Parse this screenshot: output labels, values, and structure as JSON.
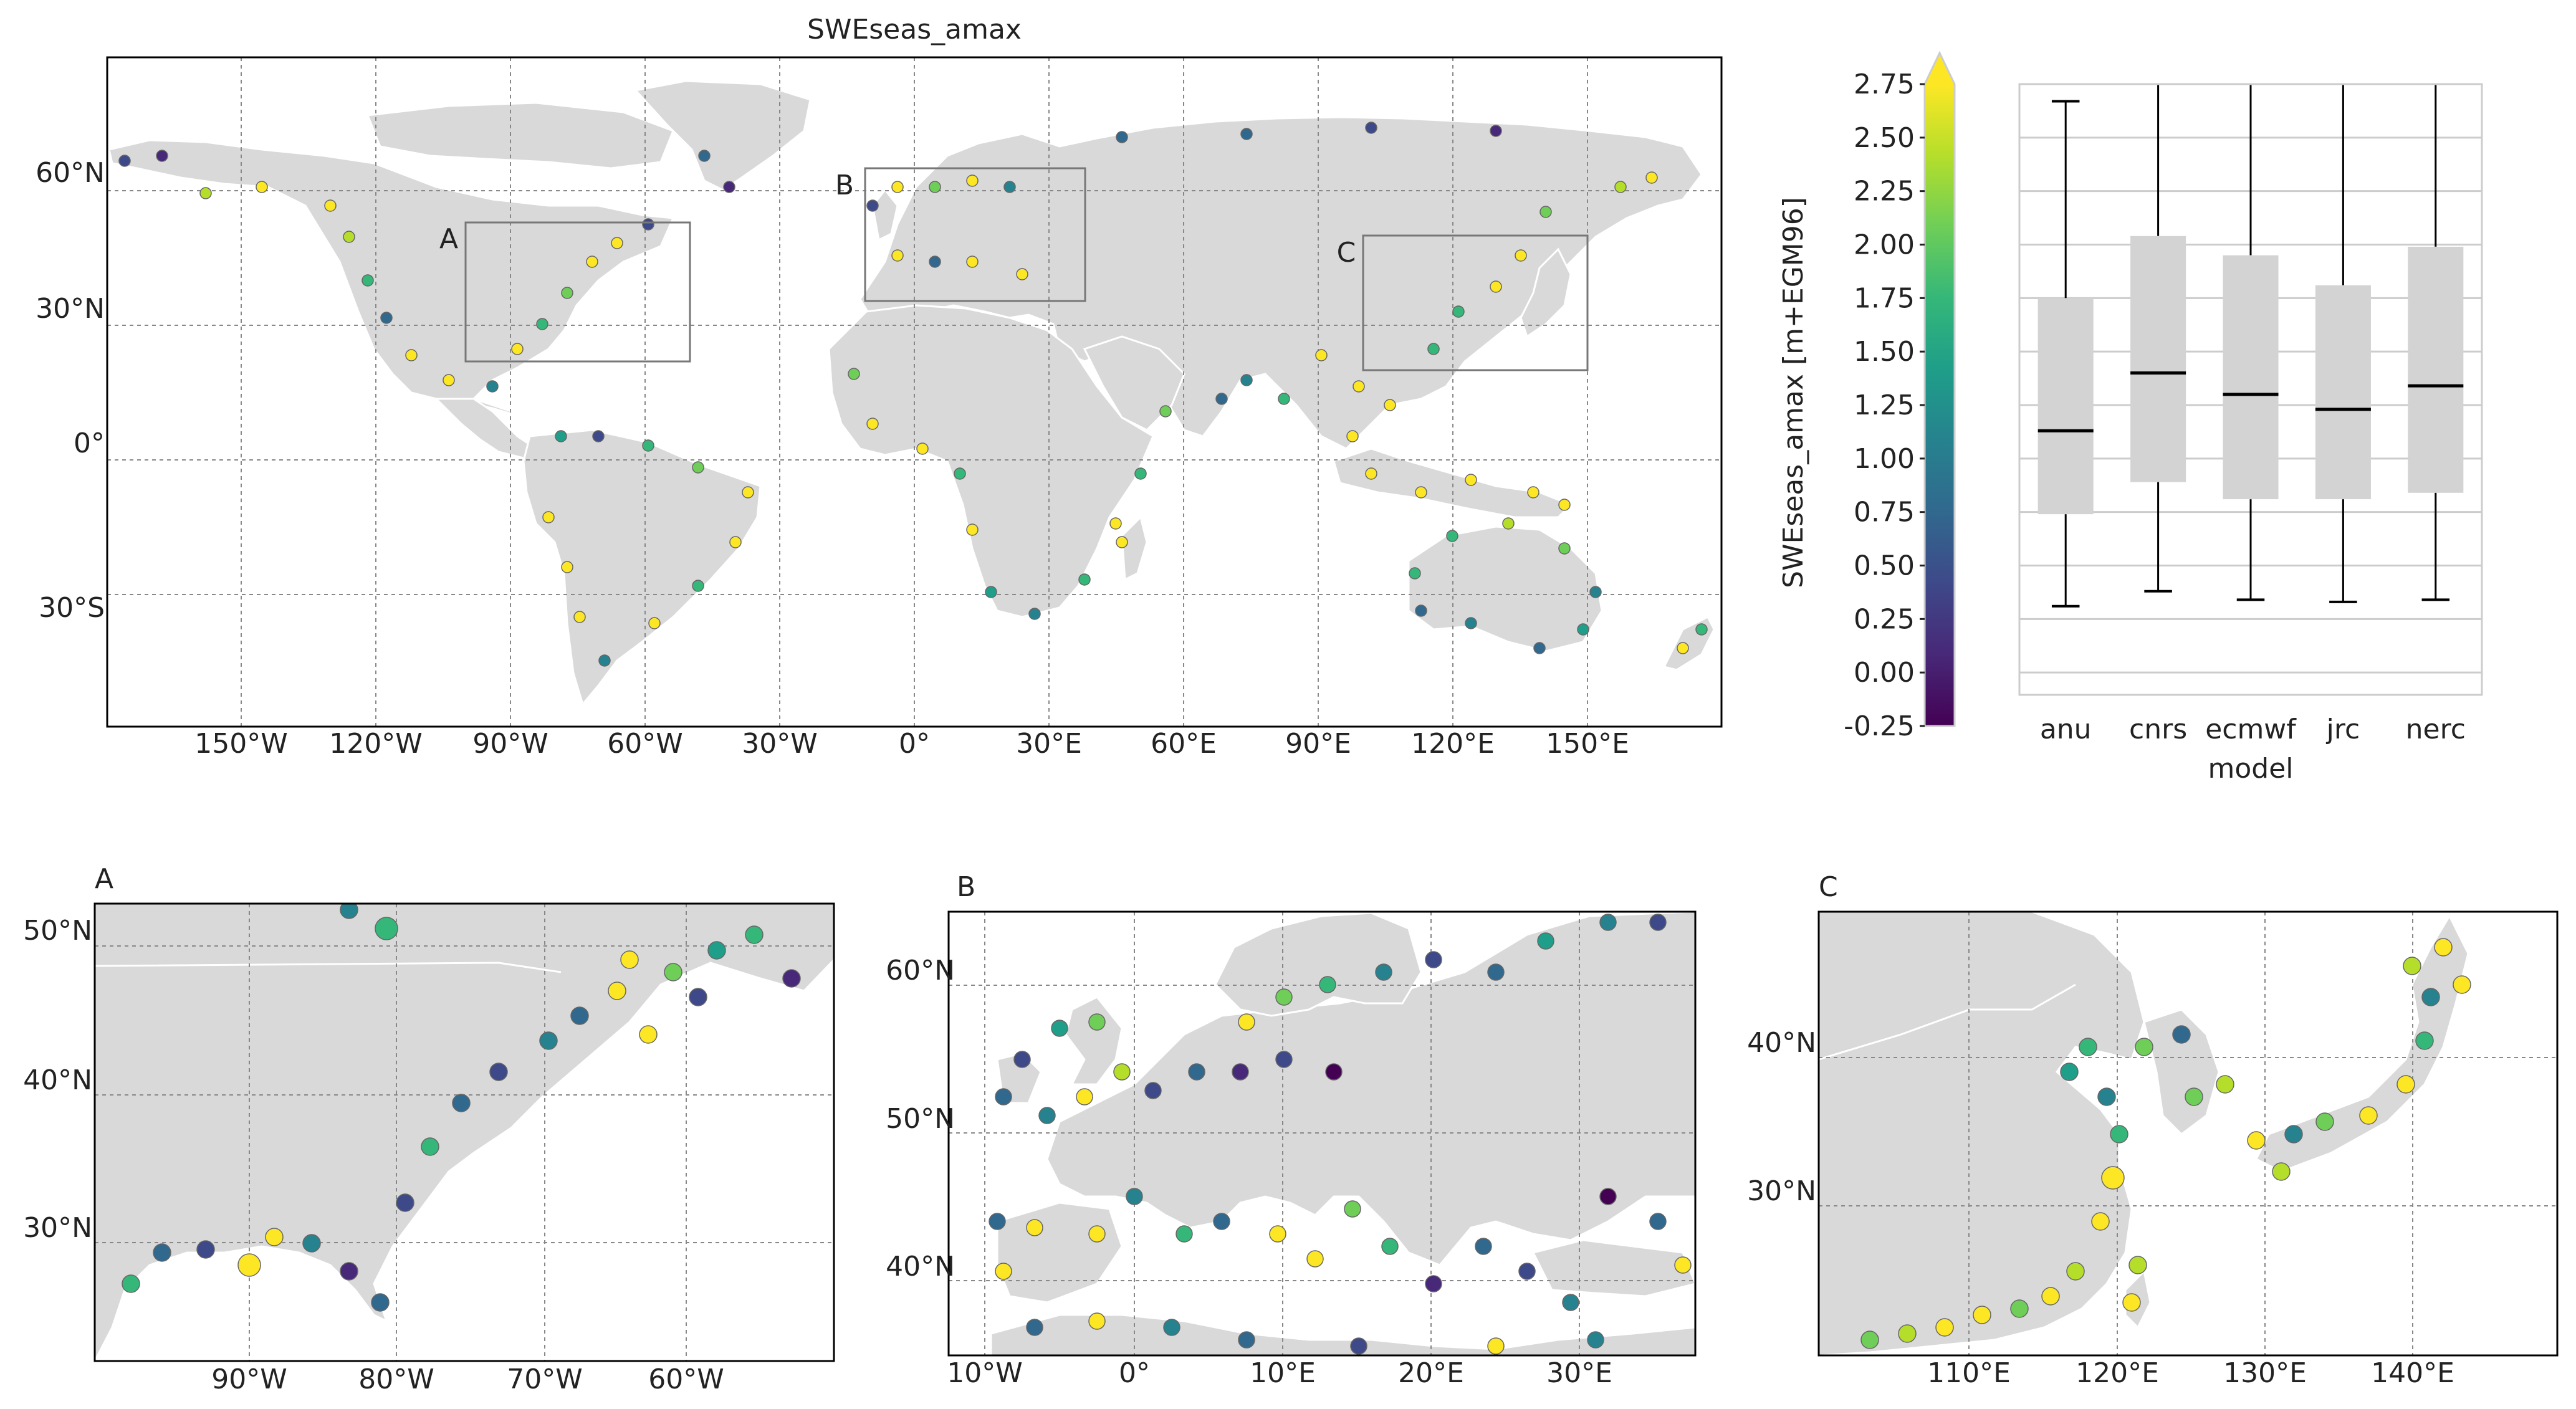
{
  "colors": {
    "land": "#d9d9d9",
    "ocean": "#ffffff",
    "border": "#ffffff",
    "grid": "#888888",
    "box_fill": "#d3d3d3",
    "median": "#000000",
    "colormap": [
      "#440154",
      "#482878",
      "#3e4989",
      "#31688e",
      "#26828e",
      "#1f9e89",
      "#35b779",
      "#6ece58",
      "#b5de2b",
      "#fde725"
    ]
  },
  "main_map": {
    "title": "SWEseas_amax",
    "lon_ticks": [
      {
        "v": -150,
        "label": "150°W"
      },
      {
        "v": -120,
        "label": "120°W"
      },
      {
        "v": -90,
        "label": "90°W"
      },
      {
        "v": -60,
        "label": "60°W"
      },
      {
        "v": -30,
        "label": "30°W"
      },
      {
        "v": 0,
        "label": "0°"
      },
      {
        "v": 30,
        "label": "30°E"
      },
      {
        "v": 60,
        "label": "60°E"
      },
      {
        "v": 90,
        "label": "90°E"
      },
      {
        "v": 120,
        "label": "120°E"
      },
      {
        "v": 150,
        "label": "150°E"
      }
    ],
    "lat_ticks": [
      {
        "v": 60,
        "label": "60°N"
      },
      {
        "v": 30,
        "label": "30°N"
      },
      {
        "v": 0,
        "label": "0°"
      },
      {
        "v": -30,
        "label": "30°S"
      }
    ],
    "regions": [
      {
        "label": "A",
        "lon": [
          -100,
          -50
        ],
        "lat": [
          21,
          52
        ]
      },
      {
        "label": "B",
        "lon": [
          -11,
          38
        ],
        "lat": [
          35,
          65
        ]
      },
      {
        "label": "C",
        "lon": [
          100,
          150
        ],
        "lat": [
          20,
          50
        ]
      }
    ]
  },
  "insets": [
    {
      "letter": "A",
      "lon_ticks": [
        {
          "v": -90,
          "label": "90°W"
        },
        {
          "v": -80,
          "label": "80°W"
        },
        {
          "v": -70,
          "label": "70°W"
        },
        {
          "v": -60,
          "label": "60°W"
        }
      ],
      "lat_ticks": [
        {
          "v": 50,
          "label": "50°N"
        },
        {
          "v": 40,
          "label": "40°N"
        },
        {
          "v": 30,
          "label": "30°N"
        }
      ]
    },
    {
      "letter": "B",
      "lon_ticks": [
        {
          "v": -10,
          "label": "10°W"
        },
        {
          "v": 0,
          "label": "0°"
        },
        {
          "v": 10,
          "label": "10°E"
        },
        {
          "v": 20,
          "label": "20°E"
        },
        {
          "v": 30,
          "label": "30°E"
        }
      ],
      "lat_ticks": [
        {
          "v": 60,
          "label": "60°N"
        },
        {
          "v": 50,
          "label": "50°N"
        },
        {
          "v": 40,
          "label": "40°N"
        }
      ]
    },
    {
      "letter": "C",
      "lon_ticks": [
        {
          "v": 110,
          "label": "110°E"
        },
        {
          "v": 120,
          "label": "120°E"
        },
        {
          "v": 130,
          "label": "130°E"
        },
        {
          "v": 140,
          "label": "140°E"
        }
      ],
      "lat_ticks": [
        {
          "v": 40,
          "label": "40°N"
        },
        {
          "v": 30,
          "label": "30°N"
        }
      ]
    }
  ],
  "colorbar": {
    "label": "SWEseas_amax [m+EGM96]",
    "range": [
      -0.25,
      2.75
    ],
    "extend": "max",
    "ticks": [
      "-0.25",
      "0.00",
      "0.25",
      "0.50",
      "0.75",
      "1.00",
      "1.25",
      "1.50",
      "1.75",
      "2.00",
      "2.25",
      "2.50",
      "2.75"
    ]
  },
  "chart_data": {
    "type": "box",
    "xlabel": "model",
    "ylabel": "SWEseas_amax [m+EGM96]",
    "ylim": [
      -0.25,
      2.75
    ],
    "grid": "horizontal",
    "categories": [
      "anu",
      "cnrs",
      "ecmwf",
      "jrc",
      "nerc"
    ],
    "boxes": [
      {
        "name": "anu",
        "whisker_low": 0.31,
        "q1": 0.74,
        "median": 1.13,
        "q3": 1.75,
        "whisker_high": 2.67
      },
      {
        "name": "cnrs",
        "whisker_low": 0.38,
        "q1": 0.89,
        "median": 1.4,
        "q3": 2.04,
        "whisker_high": 2.75
      },
      {
        "name": "ecmwf",
        "whisker_low": 0.34,
        "q1": 0.81,
        "median": 1.3,
        "q3": 1.95,
        "whisker_high": 2.75
      },
      {
        "name": "jrc",
        "whisker_low": 0.33,
        "q1": 0.81,
        "median": 1.23,
        "q3": 1.81,
        "whisker_high": 2.75
      },
      {
        "name": "nerc",
        "whisker_low": 0.34,
        "q1": 0.84,
        "median": 1.34,
        "q3": 1.99,
        "whisker_high": 2.75
      }
    ]
  }
}
